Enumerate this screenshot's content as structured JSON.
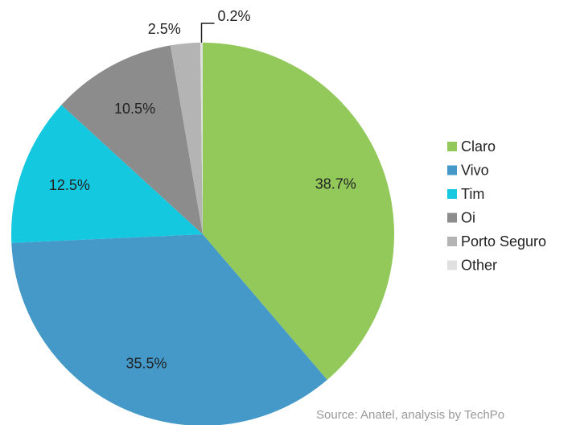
{
  "chart_data": {
    "type": "pie",
    "categories": [
      "Claro",
      "Vivo",
      "Tim",
      "Oi",
      "Porto Seguro",
      "Other"
    ],
    "values": [
      38.7,
      35.5,
      12.5,
      10.5,
      2.5,
      0.2
    ],
    "value_labels": [
      "38.7%",
      "35.5%",
      "12.5%",
      "10.5%",
      "2.5%",
      "0.2%"
    ],
    "colors": [
      "#92c95a",
      "#4499c9",
      "#14c8e0",
      "#8c8c8c",
      "#b4b4b4",
      "#e0e0e0"
    ],
    "source": "Source: Anatel, analysis by TechPo"
  }
}
